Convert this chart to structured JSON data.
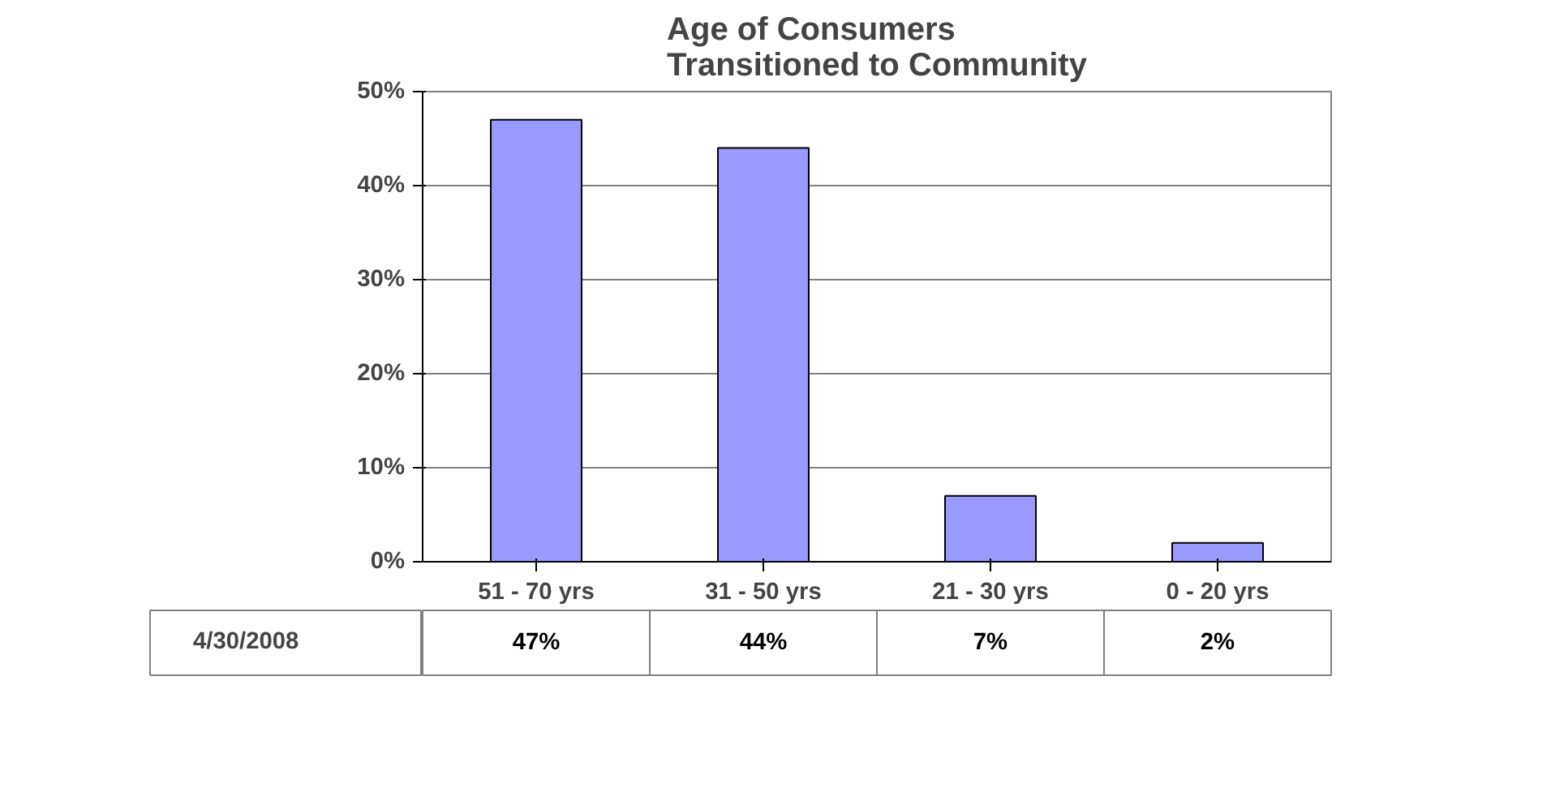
{
  "chart_data": {
    "type": "bar",
    "title": "Age of Consumers\nTransitioned to Community",
    "categories": [
      "51 - 70 yrs",
      "31 - 50 yrs",
      "21 - 30 yrs",
      "0 - 20 yrs"
    ],
    "series": [
      {
        "name": "4/30/2008",
        "color": "#9999ff",
        "values": [
          47,
          44,
          7,
          2
        ],
        "value_labels": [
          "47%",
          "44%",
          "7%",
          "2%"
        ]
      }
    ],
    "ylim": [
      0,
      50
    ],
    "yticks": [
      {
        "value": 0,
        "label": "0%"
      },
      {
        "value": 10,
        "label": "10%"
      },
      {
        "value": 20,
        "label": "20%"
      },
      {
        "value": 30,
        "label": "30%"
      },
      {
        "value": 40,
        "label": "40%"
      },
      {
        "value": 50,
        "label": "50%"
      }
    ],
    "grid": "y",
    "legend": "bottom left"
  }
}
